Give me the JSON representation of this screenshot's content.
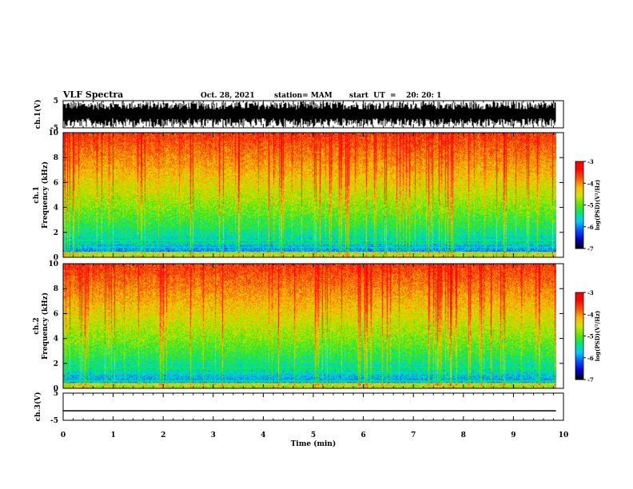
{
  "header": {
    "title": "VLF Spectra",
    "date": "Oct. 28, 2021",
    "station": "station= MAM",
    "start_ut": "start  UT  =    20: 20: 1"
  },
  "chart_data": [
    {
      "type": "line",
      "panel": "ch1-waveform",
      "ylabel": "ch.1(V)",
      "ylim": [
        -5,
        5
      ],
      "yticks": [
        "5",
        "-5"
      ],
      "x_range_min": [
        0,
        9.85
      ],
      "description_values": "dense noisy waveform spanning approx -5 to 5 V"
    },
    {
      "type": "heatmap",
      "panel": "ch1-spectrogram",
      "label_channel": "ch.1",
      "ylabel": "Frequency  (kHz)",
      "ylim": [
        0,
        10
      ],
      "yticks": [
        "0",
        "2",
        "4",
        "6",
        "8",
        "10"
      ],
      "colorbar": {
        "label": "log(PSD)(V²/Hz)",
        "range": [
          -7,
          -3
        ],
        "ticks": [
          "-3",
          "-4",
          "-5",
          "-6",
          "-7"
        ]
      }
    },
    {
      "type": "heatmap",
      "panel": "ch2-spectrogram",
      "label_channel": "ch.2",
      "ylabel": "Frequency  (kHz)",
      "ylim": [
        0,
        10
      ],
      "yticks": [
        "0",
        "2",
        "4",
        "6",
        "8",
        "10"
      ],
      "colorbar": {
        "label": "log(PSD)(V²/Hz)",
        "range": [
          -7,
          -3
        ],
        "ticks": [
          "-3",
          "-4",
          "-5",
          "-6",
          "-7"
        ]
      }
    },
    {
      "type": "line",
      "panel": "ch3-waveform",
      "ylabel": "ch.3(V)",
      "ylim": [
        -5,
        5
      ],
      "yticks": [
        "5",
        "-5"
      ],
      "x": [
        0,
        9.85
      ],
      "y": [
        -1.5,
        -1.5
      ]
    }
  ],
  "xaxis": {
    "label": "Time  (min)",
    "range": [
      0,
      10
    ],
    "ticks": [
      "0",
      "1",
      "2",
      "3",
      "4",
      "5",
      "6",
      "7",
      "8",
      "9",
      "10"
    ]
  },
  "colors": {
    "axis": "#000000",
    "background": "#ffffff",
    "colormap": [
      "#000000",
      "#0000c8",
      "#0050ff",
      "#00c8ff",
      "#00e678",
      "#5ae600",
      "#d2e600",
      "#ffb400",
      "#ff5000",
      "#ff0000",
      "#ffffff"
    ]
  }
}
